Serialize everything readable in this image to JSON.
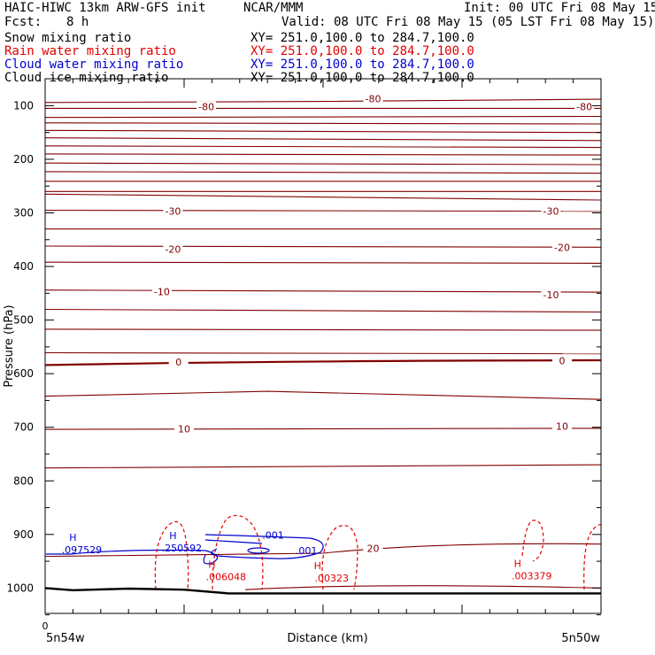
{
  "header": {
    "title_left": "HAIC-HIWC 13km ARW-GFS init",
    "org": "NCAR/MMM",
    "init": "Init: 00 UTC Fri 08 May 15",
    "fcst_label": "Fcst:",
    "fcst_value": "8 h",
    "valid": "Valid: 08 UTC Fri 08 May 15 (05 LST Fri 08 May 15)"
  },
  "fields": [
    {
      "name": "Snow mixing ratio",
      "xy": "XY= 251.0,100.0 to 284.7,100.0",
      "color": "#000000"
    },
    {
      "name": "Rain water mixing ratio",
      "xy": "XY= 251.0,100.0 to 284.7,100.0",
      "color": "#e00000"
    },
    {
      "name": "Cloud water mixing ratio",
      "xy": "XY= 251.0,100.0 to 284.7,100.0",
      "color": "#0000cc"
    },
    {
      "name": "Cloud ice mixing ratio",
      "xy": "XY= 251.0,100.0 to 284.7,100.0",
      "color": "#000000"
    }
  ],
  "chart_data": {
    "type": "line",
    "ylabel": "Pressure (hPa)",
    "xlabel": "Distance (km)",
    "x_start_label": "5n54w",
    "x_end_label": "5n50w",
    "x_zero_label": "0",
    "x_range": [
      0,
      100
    ],
    "ylim": [
      1050,
      50
    ],
    "y_ticks": [
      100,
      200,
      300,
      400,
      500,
      600,
      700,
      800,
      900,
      1000
    ],
    "temperature_contours": {
      "color": "#800000",
      "labels": [
        {
          "text": "-80",
          "x": 59,
          "p": 87
        },
        {
          "text": "-80",
          "x": 29,
          "p": 102
        },
        {
          "text": "-80",
          "x": 97,
          "p": 102
        },
        {
          "text": "-30",
          "x": 23,
          "p": 297
        },
        {
          "text": "-30",
          "x": 91,
          "p": 297
        },
        {
          "text": "-20",
          "x": 23,
          "p": 368
        },
        {
          "text": "-20",
          "x": 93,
          "p": 364
        },
        {
          "text": "-10",
          "x": 21,
          "p": 447
        },
        {
          "text": "-10",
          "x": 91,
          "p": 453
        },
        {
          "text": "0",
          "x": 24,
          "p": 578
        },
        {
          "text": "0",
          "x": 93,
          "p": 576
        },
        {
          "text": "10",
          "x": 25,
          "p": 703
        },
        {
          "text": "10",
          "x": 93,
          "p": 698
        },
        {
          "text": "20",
          "x": 59,
          "p": 926
        }
      ]
    },
    "cloud_water_maxima": [
      {
        "label": "H",
        "value": ".097529",
        "x": 5,
        "p": 912
      },
      {
        "label": "H",
        "value": ".250592",
        "x": 23,
        "p": 909
      },
      {
        "label": "",
        "value": ".001",
        "x": 41,
        "p": 901
      },
      {
        "label": "",
        "value": ".001",
        "x": 47,
        "p": 930
      }
    ],
    "rain_water_maxima": [
      {
        "label": "H",
        "value": ".006048",
        "x": 30,
        "p": 962
      },
      {
        "label": "H",
        "value": ".00323",
        "x": 49,
        "p": 965
      },
      {
        "label": "H",
        "value": ".003379",
        "x": 85,
        "p": 961
      }
    ],
    "surface_line": [
      {
        "x": 0,
        "p": 1000
      },
      {
        "x": 5,
        "p": 1004
      },
      {
        "x": 15,
        "p": 1001
      },
      {
        "x": 25,
        "p": 1003
      },
      {
        "x": 33,
        "p": 1010
      },
      {
        "x": 45,
        "p": 1010
      },
      {
        "x": 100,
        "p": 1010
      }
    ]
  }
}
